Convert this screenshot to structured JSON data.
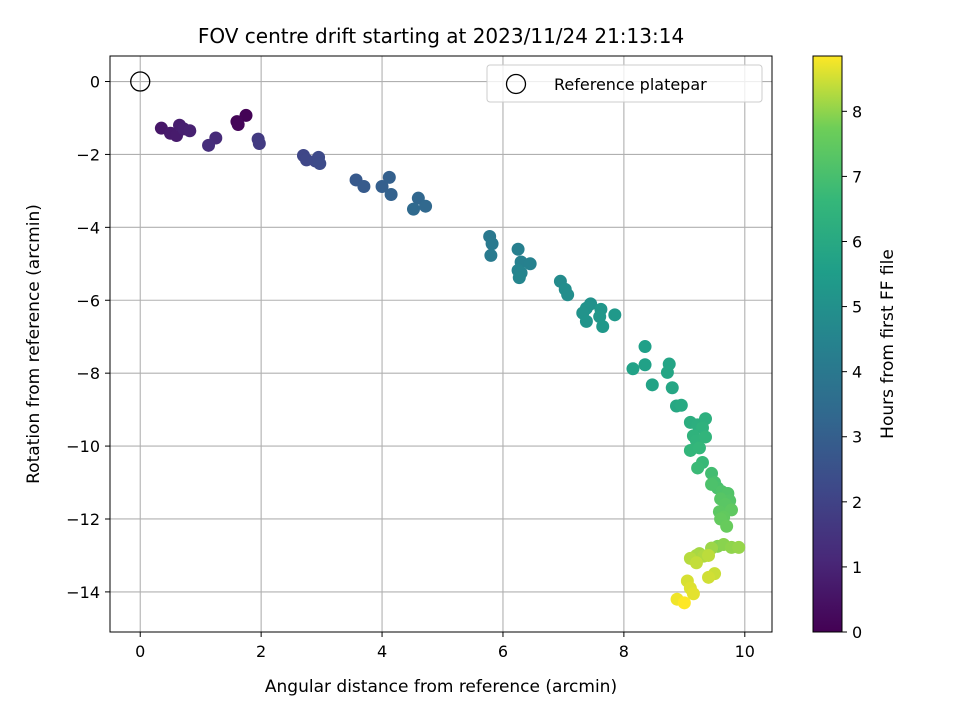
{
  "chart_data": {
    "type": "scatter",
    "title": "FOV centre drift starting at 2023/11/24 21:13:14",
    "xlabel": "Angular distance from reference (arcmin)",
    "ylabel": "Rotation from reference (arcmin)",
    "xlim": [
      -0.5,
      10.45
    ],
    "ylim": [
      -15.1,
      0.7
    ],
    "xticks": [
      0,
      2,
      4,
      6,
      8,
      10
    ],
    "yticks": [
      0,
      -2,
      -4,
      -6,
      -8,
      -10,
      -12,
      -14
    ],
    "grid": true,
    "legend": {
      "position": "top-right",
      "entries": [
        "Reference platepar"
      ]
    },
    "reference_point": {
      "x": 0,
      "y": 0
    },
    "colorbar": {
      "label": "Hours from first FF file",
      "colormap": "viridis",
      "range": [
        0,
        8.85
      ],
      "ticks": [
        0,
        1,
        2,
        3,
        4,
        5,
        6,
        7,
        8
      ]
    },
    "series": [
      {
        "colorscale": "viridis",
        "points": [
          {
            "x": 1.75,
            "y": -0.93,
            "c": 0.05
          },
          {
            "x": 1.6,
            "y": -1.1,
            "c": 0.1
          },
          {
            "x": 1.62,
            "y": -1.18,
            "c": 0.15
          },
          {
            "x": 0.35,
            "y": -1.28,
            "c": 0.6
          },
          {
            "x": 0.5,
            "y": -1.42,
            "c": 0.7
          },
          {
            "x": 0.6,
            "y": -1.48,
            "c": 0.75
          },
          {
            "x": 0.65,
            "y": -1.2,
            "c": 0.8
          },
          {
            "x": 0.72,
            "y": -1.3,
            "c": 0.85
          },
          {
            "x": 0.82,
            "y": -1.35,
            "c": 0.9
          },
          {
            "x": 1.25,
            "y": -1.55,
            "c": 1.2
          },
          {
            "x": 1.13,
            "y": -1.75,
            "c": 1.3
          },
          {
            "x": 1.95,
            "y": -1.58,
            "c": 1.7
          },
          {
            "x": 1.97,
            "y": -1.7,
            "c": 1.75
          },
          {
            "x": 2.7,
            "y": -2.03,
            "c": 2.1
          },
          {
            "x": 2.75,
            "y": -2.15,
            "c": 2.15
          },
          {
            "x": 2.9,
            "y": -2.18,
            "c": 2.2
          },
          {
            "x": 2.95,
            "y": -2.08,
            "c": 2.25
          },
          {
            "x": 2.97,
            "y": -2.25,
            "c": 2.3
          },
          {
            "x": 3.57,
            "y": -2.7,
            "c": 2.8
          },
          {
            "x": 3.7,
            "y": -2.88,
            "c": 2.85
          },
          {
            "x": 4.0,
            "y": -2.88,
            "c": 3.0
          },
          {
            "x": 4.12,
            "y": -2.63,
            "c": 3.05
          },
          {
            "x": 4.15,
            "y": -3.1,
            "c": 3.1
          },
          {
            "x": 4.6,
            "y": -3.2,
            "c": 3.3
          },
          {
            "x": 4.72,
            "y": -3.42,
            "c": 3.35
          },
          {
            "x": 4.52,
            "y": -3.5,
            "c": 3.4
          },
          {
            "x": 5.78,
            "y": -4.25,
            "c": 4.0
          },
          {
            "x": 5.82,
            "y": -4.45,
            "c": 4.05
          },
          {
            "x": 5.8,
            "y": -4.77,
            "c": 4.1
          },
          {
            "x": 6.25,
            "y": -4.6,
            "c": 4.3
          },
          {
            "x": 6.3,
            "y": -4.95,
            "c": 4.35
          },
          {
            "x": 6.45,
            "y": -5.0,
            "c": 4.4
          },
          {
            "x": 6.25,
            "y": -5.18,
            "c": 4.45
          },
          {
            "x": 6.3,
            "y": -5.25,
            "c": 4.5
          },
          {
            "x": 6.27,
            "y": -5.38,
            "c": 4.55
          },
          {
            "x": 6.95,
            "y": -5.48,
            "c": 4.8
          },
          {
            "x": 7.03,
            "y": -5.7,
            "c": 4.85
          },
          {
            "x": 7.07,
            "y": -5.85,
            "c": 4.9
          },
          {
            "x": 7.45,
            "y": -6.1,
            "c": 5.0
          },
          {
            "x": 7.38,
            "y": -6.22,
            "c": 5.05
          },
          {
            "x": 7.32,
            "y": -6.35,
            "c": 5.1
          },
          {
            "x": 7.38,
            "y": -6.58,
            "c": 5.15
          },
          {
            "x": 7.62,
            "y": -6.25,
            "c": 5.2
          },
          {
            "x": 7.6,
            "y": -6.45,
            "c": 5.25
          },
          {
            "x": 7.65,
            "y": -6.72,
            "c": 5.3
          },
          {
            "x": 7.85,
            "y": -6.4,
            "c": 5.35
          },
          {
            "x": 8.35,
            "y": -7.27,
            "c": 5.6
          },
          {
            "x": 8.35,
            "y": -7.77,
            "c": 5.65
          },
          {
            "x": 8.15,
            "y": -7.88,
            "c": 5.7
          },
          {
            "x": 8.47,
            "y": -8.32,
            "c": 5.75
          },
          {
            "x": 8.75,
            "y": -7.75,
            "c": 5.8
          },
          {
            "x": 8.72,
            "y": -7.98,
            "c": 5.85
          },
          {
            "x": 8.8,
            "y": -8.4,
            "c": 5.9
          },
          {
            "x": 8.87,
            "y": -8.9,
            "c": 5.95
          },
          {
            "x": 8.95,
            "y": -8.88,
            "c": 6.0
          },
          {
            "x": 9.1,
            "y": -9.35,
            "c": 6.2
          },
          {
            "x": 9.22,
            "y": -9.42,
            "c": 6.25
          },
          {
            "x": 9.35,
            "y": -9.25,
            "c": 6.3
          },
          {
            "x": 9.3,
            "y": -9.5,
            "c": 6.35
          },
          {
            "x": 9.15,
            "y": -9.72,
            "c": 6.4
          },
          {
            "x": 9.2,
            "y": -9.85,
            "c": 6.45
          },
          {
            "x": 9.35,
            "y": -9.75,
            "c": 6.5
          },
          {
            "x": 9.1,
            "y": -10.12,
            "c": 6.55
          },
          {
            "x": 9.25,
            "y": -10.05,
            "c": 6.6
          },
          {
            "x": 9.3,
            "y": -10.45,
            "c": 6.7
          },
          {
            "x": 9.22,
            "y": -10.6,
            "c": 6.75
          },
          {
            "x": 9.45,
            "y": -10.75,
            "c": 6.9
          },
          {
            "x": 9.5,
            "y": -11.0,
            "c": 7.0
          },
          {
            "x": 9.55,
            "y": -11.15,
            "c": 7.05
          },
          {
            "x": 9.45,
            "y": -11.05,
            "c": 7.1
          },
          {
            "x": 9.62,
            "y": -11.25,
            "c": 7.15
          },
          {
            "x": 9.72,
            "y": -11.3,
            "c": 7.2
          },
          {
            "x": 9.75,
            "y": -11.5,
            "c": 7.25
          },
          {
            "x": 9.6,
            "y": -11.45,
            "c": 7.3
          },
          {
            "x": 9.68,
            "y": -11.6,
            "c": 7.35
          },
          {
            "x": 9.58,
            "y": -11.8,
            "c": 7.4
          },
          {
            "x": 9.78,
            "y": -11.75,
            "c": 7.45
          },
          {
            "x": 9.65,
            "y": -11.95,
            "c": 7.5
          },
          {
            "x": 9.6,
            "y": -12.0,
            "c": 7.55
          },
          {
            "x": 9.7,
            "y": -12.2,
            "c": 7.6
          },
          {
            "x": 9.55,
            "y": -12.75,
            "c": 7.9
          },
          {
            "x": 9.65,
            "y": -12.7,
            "c": 7.95
          },
          {
            "x": 9.78,
            "y": -12.78,
            "c": 8.0
          },
          {
            "x": 9.9,
            "y": -12.78,
            "c": 8.05
          },
          {
            "x": 9.45,
            "y": -12.8,
            "c": 8.1
          },
          {
            "x": 9.25,
            "y": -12.95,
            "c": 8.15
          },
          {
            "x": 9.2,
            "y": -13.0,
            "c": 8.2
          },
          {
            "x": 9.32,
            "y": -13.02,
            "c": 8.25
          },
          {
            "x": 9.1,
            "y": -13.08,
            "c": 8.3
          },
          {
            "x": 9.4,
            "y": -13.0,
            "c": 8.35
          },
          {
            "x": 9.2,
            "y": -13.2,
            "c": 8.4
          },
          {
            "x": 9.5,
            "y": -13.5,
            "c": 8.45
          },
          {
            "x": 9.4,
            "y": -13.6,
            "c": 8.5
          },
          {
            "x": 9.05,
            "y": -13.7,
            "c": 8.55
          },
          {
            "x": 9.1,
            "y": -13.9,
            "c": 8.6
          },
          {
            "x": 9.15,
            "y": -14.05,
            "c": 8.65
          },
          {
            "x": 8.88,
            "y": -14.2,
            "c": 8.75
          },
          {
            "x": 9.0,
            "y": -14.3,
            "c": 8.85
          }
        ]
      }
    ]
  }
}
